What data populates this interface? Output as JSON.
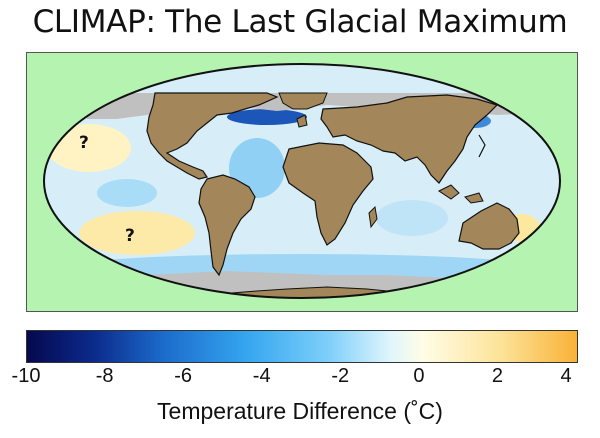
{
  "title": "CLIMAP: The Last Glacial Maximum",
  "map": {
    "annotations": [
      "?",
      "?"
    ]
  },
  "colorbar": {
    "ticks": [
      "-10",
      "-8",
      "-6",
      "-4",
      "-2",
      "0",
      "2",
      "4"
    ],
    "label": "Temperature Difference (˚C)",
    "range": [
      -10,
      4
    ],
    "colors": {
      "min": "#06084f",
      "mid_cold": "#35a6ef",
      "zero": "#fffde6",
      "max": "#f9b236"
    }
  },
  "colors": {
    "background_panel": "#b4f3b0",
    "land": "#a38659",
    "ice": "#c0c0c0",
    "ocean_light": "#dff2fb"
  }
}
